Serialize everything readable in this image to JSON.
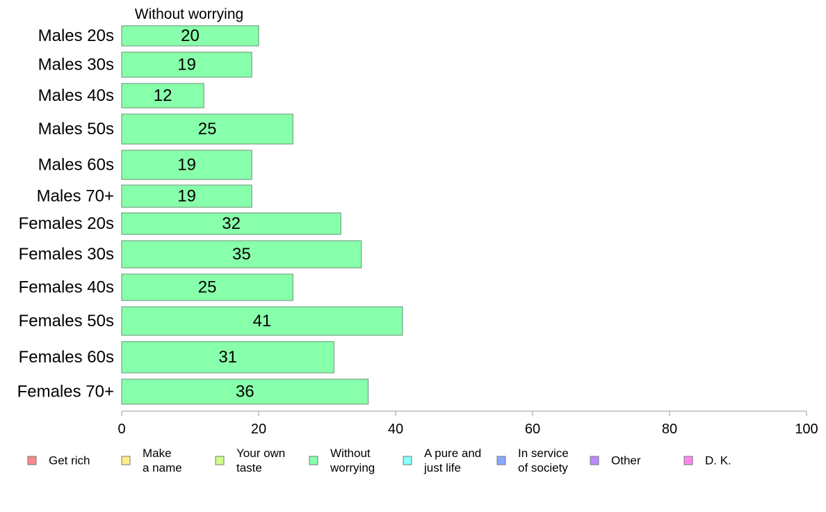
{
  "chart_data": {
    "type": "bar",
    "orientation": "horizontal",
    "title": "Without worrying",
    "categories": [
      "Males 20s",
      "Males 30s",
      "Males 40s",
      "Males 50s",
      "Males 60s",
      "Males 70+",
      "Females 20s",
      "Females 30s",
      "Females 40s",
      "Females 50s",
      "Females 60s",
      "Females 70+"
    ],
    "series": [
      {
        "name": "Without worrying",
        "values": [
          20,
          19,
          12,
          25,
          19,
          19,
          32,
          35,
          25,
          41,
          31,
          36
        ],
        "color": "#88ffaa"
      }
    ],
    "xlim": [
      0,
      100
    ],
    "xticks": [
      0,
      20,
      40,
      60,
      80,
      100
    ],
    "grid": false,
    "legend_position": "bottom",
    "legend": [
      {
        "lines": [
          "Get rich"
        ],
        "color": "#ff8888"
      },
      {
        "lines": [
          "Make",
          "a name"
        ],
        "color": "#ffee88"
      },
      {
        "lines": [
          "Your own",
          "taste"
        ],
        "color": "#ccff88"
      },
      {
        "lines": [
          "Without",
          "worrying"
        ],
        "color": "#88ffaa"
      },
      {
        "lines": [
          "A pure and",
          "just life"
        ],
        "color": "#88ffff"
      },
      {
        "lines": [
          "In service",
          "of society"
        ],
        "color": "#88aaff"
      },
      {
        "lines": [
          "Other"
        ],
        "color": "#bb88ff"
      },
      {
        "lines": [
          "D. K."
        ],
        "color": "#ff88ee"
      }
    ]
  }
}
